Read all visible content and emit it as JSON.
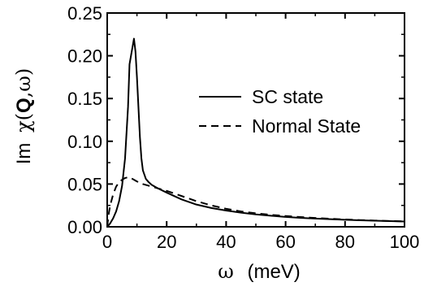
{
  "chart_data": {
    "type": "line",
    "xlabel": {
      "symbol": "ω",
      "unit": "(meV)"
    },
    "ylabel": {
      "prefix": "Im",
      "chi": "χ(",
      "q": "Q",
      "rest": ",ω)"
    },
    "xlim": [
      0,
      100
    ],
    "ylim": [
      0,
      0.25
    ],
    "x_ticks": [
      0,
      20,
      40,
      60,
      80,
      100
    ],
    "x_tick_labels": [
      "0",
      "20",
      "40",
      "60",
      "80",
      "100"
    ],
    "y_ticks": [
      0,
      0.05,
      0.1,
      0.15,
      0.2,
      0.25
    ],
    "y_tick_labels": [
      "0.00",
      "0.05",
      "0.10",
      "0.15",
      "0.20",
      "0.25"
    ],
    "grid": false,
    "legend_position": "right",
    "series": [
      {
        "name": "SC state",
        "style": "solid",
        "color": "#000000",
        "x": [
          0,
          1,
          2,
          3,
          4,
          5,
          6,
          7,
          7.5,
          8,
          8.5,
          9,
          9.5,
          10,
          10.5,
          11,
          11.5,
          12,
          13,
          14,
          15,
          17,
          20,
          25,
          30,
          35,
          40,
          45,
          50,
          55,
          60,
          65,
          70,
          75,
          80,
          85,
          90,
          95,
          100
        ],
        "y": [
          0.0,
          0.004,
          0.01,
          0.018,
          0.03,
          0.048,
          0.08,
          0.14,
          0.19,
          0.2,
          0.21,
          0.22,
          0.205,
          0.175,
          0.14,
          0.105,
          0.08,
          0.066,
          0.056,
          0.052,
          0.049,
          0.045,
          0.04,
          0.032,
          0.026,
          0.022,
          0.019,
          0.0165,
          0.0145,
          0.013,
          0.0115,
          0.0105,
          0.0096,
          0.0089,
          0.0082,
          0.0076,
          0.0071,
          0.0066,
          0.0062
        ]
      },
      {
        "name": "Normal State",
        "style": "dashed",
        "color": "#000000",
        "x": [
          0,
          0.5,
          1,
          2,
          3,
          4,
          5,
          6,
          7,
          8,
          9,
          10,
          12,
          15,
          20,
          25,
          30,
          35,
          40,
          45,
          50,
          55,
          60,
          65,
          70,
          75,
          80,
          85,
          90,
          95,
          100
        ],
        "y": [
          0.0,
          0.015,
          0.025,
          0.038,
          0.047,
          0.052,
          0.055,
          0.057,
          0.058,
          0.057,
          0.055,
          0.053,
          0.05,
          0.047,
          0.042,
          0.036,
          0.03,
          0.025,
          0.021,
          0.018,
          0.0158,
          0.014,
          0.0126,
          0.0114,
          0.0103,
          0.0094,
          0.0086,
          0.0079,
          0.0073,
          0.0068,
          0.0063
        ]
      }
    ]
  }
}
